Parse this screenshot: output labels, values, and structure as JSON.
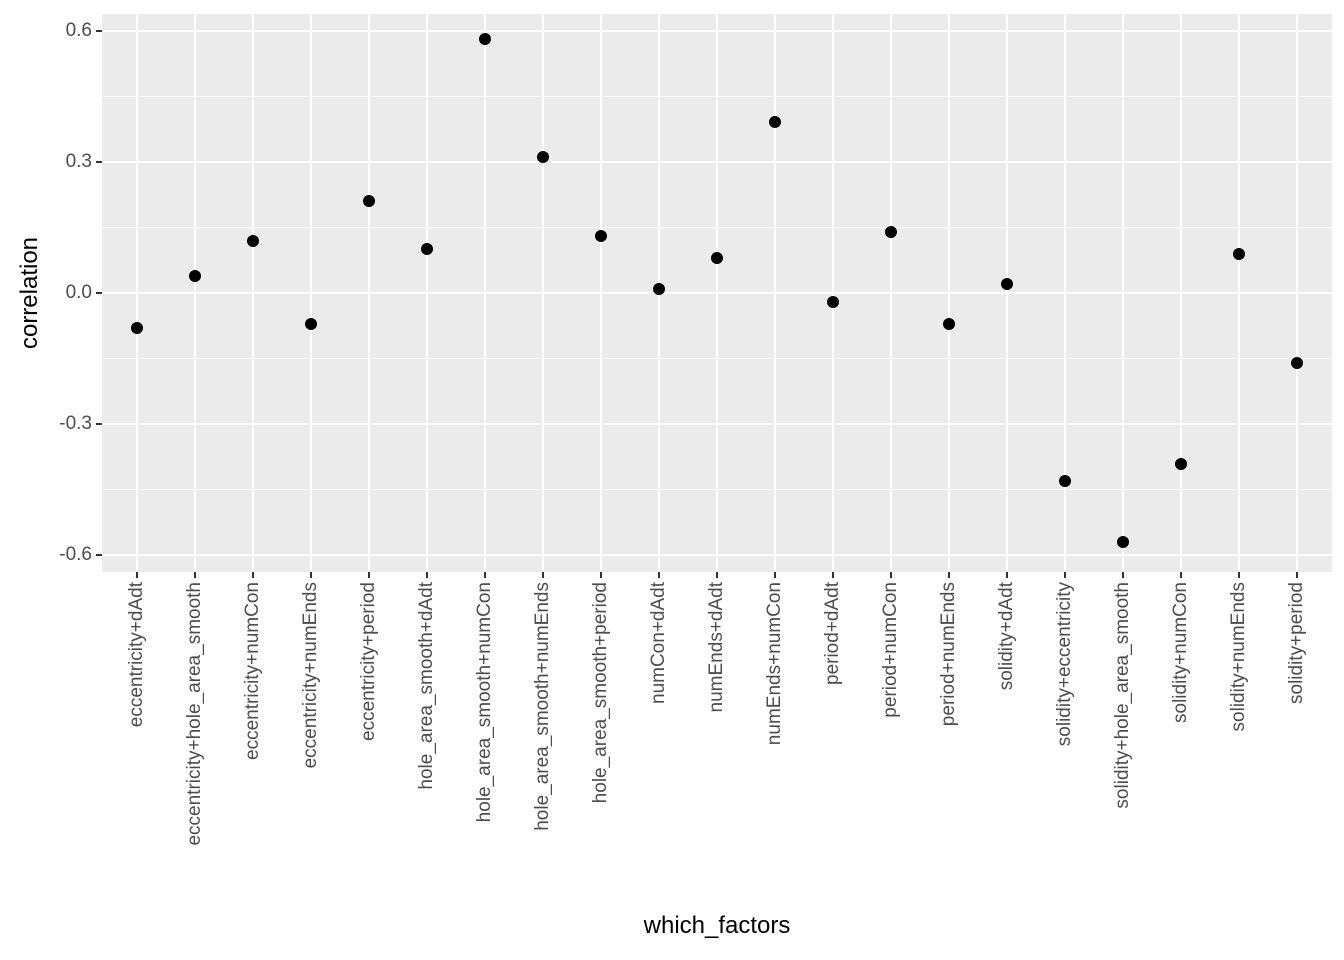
{
  "figure": {
    "background_color": "#FFFFFF",
    "panel_background_color": "#EBEBEB",
    "gridline_color": "#FFFFFF",
    "point_color": "#000000",
    "tick_label_color": "#4D4D4D",
    "axis_title_color": "#000000",
    "theme": "ggplot-gray"
  },
  "chart_data": {
    "type": "scatter",
    "title": "",
    "xlabel": "which_factors",
    "ylabel": "correlation",
    "categories": [
      "eccentricity+dAdt",
      "eccentricity+hole_area_smooth",
      "eccentricity+numCon",
      "eccentricity+numEnds",
      "eccentricity+period",
      "hole_area_smooth+dAdt",
      "hole_area_smooth+numCon",
      "hole_area_smooth+numEnds",
      "hole_area_smooth+period",
      "numCon+dAdt",
      "numEnds+dAdt",
      "numEnds+numCon",
      "period+dAdt",
      "period+numCon",
      "period+numEnds",
      "solidity+dAdt",
      "solidity+eccentricity",
      "solidity+hole_area_smooth",
      "solidity+numCon",
      "solidity+numEnds",
      "solidity+period"
    ],
    "values": [
      -0.08,
      0.04,
      0.12,
      -0.07,
      0.21,
      0.1,
      0.58,
      0.31,
      0.13,
      0.01,
      0.08,
      0.39,
      -0.02,
      0.14,
      -0.07,
      0.02,
      -0.43,
      -0.57,
      -0.39,
      0.09,
      -0.16
    ],
    "y_tick_labels": [
      "0.6",
      "0.3",
      "0.0",
      "-0.3",
      "-0.6"
    ],
    "y_ticks": [
      0.6,
      0.3,
      0.0,
      -0.3,
      -0.6
    ],
    "y_minor_gridlines": [
      0.45,
      0.15,
      -0.15,
      -0.45
    ],
    "ylim": [
      -0.638,
      0.638
    ],
    "grid": true,
    "legend": "none"
  }
}
